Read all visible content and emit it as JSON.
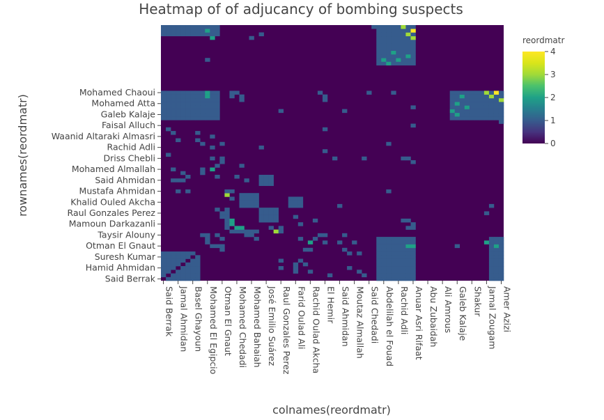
{
  "chart_data": {
    "type": "heatmap",
    "title": "Heatmap of of adjucancy of bombing suspects",
    "xlabel": "colnames(reordmatr)",
    "ylabel": "rownames(reordmatr)",
    "colorbar_title": "reordmatr",
    "n_nodes": 70,
    "zlim": [
      0,
      4
    ],
    "colorbar_ticks": [
      "0",
      "1",
      "2",
      "3",
      "4"
    ],
    "colorscale": "viridis",
    "x_tick_labels": [
      "Said Berrak",
      "Jamal Ahmidan",
      "Basel Ghayoun",
      "Mohamed El Egipcio",
      "Otman El Gnaut",
      "Mohamed Chedadi",
      "Mohamed Bahaiah",
      "José Emilio Suárez",
      "Raul Gonzales Perez",
      "Farid Oulad Ali",
      "Rachid Oulad Akcha",
      "El Hemir",
      "Said Ahmidan",
      "Moutaz Almallah",
      "Said Chedadi",
      "Abdelilah el Fouad",
      "Rachid Adli",
      "Anuar Asri Rifaat",
      "Abu Zubaidah",
      "Ali Amrous",
      "Galeb Kalaje",
      "Shakur",
      "Jamal Zougam",
      "Amer Azizi"
    ],
    "x_tick_index": [
      0,
      3,
      6,
      9,
      12,
      15,
      18,
      21,
      24,
      27,
      30,
      33,
      36,
      39,
      42,
      45,
      48,
      51,
      54,
      57,
      60,
      63,
      66,
      69
    ],
    "y_tick_labels": [
      "Said Berrak",
      "Hamid Ahmidan",
      "Suresh Kumar",
      "Otman El Gnaut",
      "Taysir Alouny",
      "Mamoun Darkazanli",
      "Raul Gonzales Perez",
      "Khalid Ouled Akcha",
      "Mustafa Ahmidan",
      "Said Ahmidan",
      "Mohamed Almallah",
      "Driss Chebli",
      "Rachid Adli",
      "Waanid Altaraki Almasri",
      "Faisal Alluch",
      "Galeb Kalaje",
      "Mohamed Atta",
      "Mohamed Chaoui"
    ],
    "y_tick_index": [
      0,
      3,
      6,
      9,
      12,
      15,
      18,
      21,
      24,
      27,
      30,
      33,
      36,
      39,
      42,
      45,
      48,
      51
    ],
    "blocks": [
      {
        "rows": [
          0,
          7
        ],
        "cols": [
          0,
          7
        ],
        "value": 1
      },
      {
        "rows": [
          13,
          15
        ],
        "cols": [
          13,
          15
        ],
        "value": 1
      },
      {
        "rows": [
          16,
          19
        ],
        "cols": [
          20,
          23
        ],
        "value": 1
      },
      {
        "rows": [
          20,
          22
        ],
        "cols": [
          26,
          28
        ],
        "value": 1
      },
      {
        "rows": [
          44,
          51
        ],
        "cols": [
          59,
          66
        ],
        "value": 1
      },
      {
        "rows": [
          44,
          51
        ],
        "cols": [
          66,
          69
        ],
        "value": 1
      },
      {
        "rows": [
          44,
          51
        ],
        "cols": [
          0,
          11
        ],
        "value": 1
      },
      {
        "rows": [
          0,
          11
        ],
        "cols": [
          67,
          69
        ],
        "value": 1
      }
    ],
    "cells": [
      {
        "r": 51,
        "c": 68,
        "v": 4
      },
      {
        "r": 50,
        "c": 67,
        "v": 3
      },
      {
        "r": 51,
        "c": 66,
        "v": 3
      },
      {
        "r": 49,
        "c": 69,
        "v": 3
      },
      {
        "r": 50,
        "c": 61,
        "v": 2
      },
      {
        "r": 48,
        "c": 60,
        "v": 2
      },
      {
        "r": 47,
        "c": 62,
        "v": 2
      },
      {
        "r": 46,
        "c": 59,
        "v": 2
      },
      {
        "r": 45,
        "c": 60,
        "v": 2
      },
      {
        "r": 51,
        "c": 9,
        "v": 2
      },
      {
        "r": 50,
        "c": 9,
        "v": 2
      },
      {
        "r": 14,
        "c": 15,
        "v": 2
      },
      {
        "r": 14,
        "c": 16,
        "v": 2
      },
      {
        "r": 10,
        "c": 30,
        "v": 2
      },
      {
        "r": 23,
        "c": 13,
        "v": 3
      },
      {
        "r": 10,
        "c": 66,
        "v": 2
      },
      {
        "r": 9,
        "c": 68,
        "v": 2
      },
      {
        "r": 51,
        "c": 14,
        "v": 1
      },
      {
        "r": 50,
        "c": 14,
        "v": 1
      },
      {
        "r": 51,
        "c": 15,
        "v": 1
      },
      {
        "r": 50,
        "c": 16,
        "v": 1
      },
      {
        "r": 49,
        "c": 16,
        "v": 1
      },
      {
        "r": 51,
        "c": 32,
        "v": 1
      },
      {
        "r": 50,
        "c": 33,
        "v": 1
      },
      {
        "r": 49,
        "c": 33,
        "v": 1
      },
      {
        "r": 51,
        "c": 42,
        "v": 1
      },
      {
        "r": 51,
        "c": 47,
        "v": 1
      },
      {
        "r": 46,
        "c": 37,
        "v": 1
      },
      {
        "r": 45,
        "c": 8,
        "v": 1
      },
      {
        "r": 45,
        "c": 9,
        "v": 1
      },
      {
        "r": 45,
        "c": 10,
        "v": 1
      },
      {
        "r": 46,
        "c": 0,
        "v": 1
      },
      {
        "r": 41,
        "c": 1,
        "v": 1
      },
      {
        "r": 40,
        "c": 2,
        "v": 1
      },
      {
        "r": 38,
        "c": 3,
        "v": 1
      },
      {
        "r": 36,
        "c": 20,
        "v": 1
      },
      {
        "r": 33,
        "c": 12,
        "v": 1
      },
      {
        "r": 32,
        "c": 12,
        "v": 1
      },
      {
        "r": 30,
        "c": 8,
        "v": 1
      },
      {
        "r": 29,
        "c": 8,
        "v": 1
      },
      {
        "r": 31,
        "c": 16,
        "v": 1
      },
      {
        "r": 27,
        "c": 2,
        "v": 1
      },
      {
        "r": 27,
        "c": 4,
        "v": 1
      },
      {
        "r": 28,
        "c": 15,
        "v": 1
      },
      {
        "r": 27,
        "c": 17,
        "v": 1
      },
      {
        "r": 27,
        "c": 27,
        "v": 1
      },
      {
        "r": 24,
        "c": 3,
        "v": 1
      },
      {
        "r": 24,
        "c": 5,
        "v": 1
      },
      {
        "r": 24,
        "c": 13,
        "v": 1
      },
      {
        "r": 24,
        "c": 14,
        "v": 1
      },
      {
        "r": 24,
        "c": 46,
        "v": 1
      },
      {
        "r": 22,
        "c": 14,
        "v": 1
      },
      {
        "r": 19,
        "c": 13,
        "v": 1
      },
      {
        "r": 18,
        "c": 13,
        "v": 1
      },
      {
        "r": 17,
        "c": 13,
        "v": 1
      },
      {
        "r": 16,
        "c": 13,
        "v": 1
      },
      {
        "r": 12,
        "c": 9,
        "v": 1
      },
      {
        "r": 12,
        "c": 11,
        "v": 1
      },
      {
        "r": 12,
        "c": 17,
        "v": 1
      },
      {
        "r": 12,
        "c": 18,
        "v": 1
      },
      {
        "r": 11,
        "c": 19,
        "v": 1
      },
      {
        "r": 11,
        "c": 28,
        "v": 1
      },
      {
        "r": 11,
        "c": 31,
        "v": 1
      },
      {
        "r": 10,
        "c": 33,
        "v": 1
      },
      {
        "r": 10,
        "c": 36,
        "v": 1
      },
      {
        "r": 10,
        "c": 39,
        "v": 1
      },
      {
        "r": 9,
        "c": 10,
        "v": 1
      },
      {
        "r": 9,
        "c": 11,
        "v": 1
      },
      {
        "r": 8,
        "c": 12,
        "v": 1
      },
      {
        "r": 8,
        "c": 37,
        "v": 1
      },
      {
        "r": 7,
        "c": 38,
        "v": 1
      },
      {
        "r": 7,
        "c": 40,
        "v": 1
      },
      {
        "r": 5,
        "c": 28,
        "v": 1
      },
      {
        "r": 4,
        "c": 29,
        "v": 1
      },
      {
        "r": 3,
        "c": 27,
        "v": 1
      },
      {
        "r": 2,
        "c": 30,
        "v": 1
      },
      {
        "r": 1,
        "c": 34,
        "v": 1
      },
      {
        "r": 1,
        "c": 49,
        "v": 1
      },
      {
        "r": 2,
        "c": 50,
        "v": 1
      },
      {
        "r": 9,
        "c": 60,
        "v": 1
      },
      {
        "r": 20,
        "c": 67,
        "v": 1
      },
      {
        "r": 18,
        "c": 66,
        "v": 1
      },
      {
        "r": 33,
        "c": 41,
        "v": 1
      },
      {
        "r": 35,
        "c": 33,
        "v": 1
      },
      {
        "r": 43,
        "c": 69,
        "v": 1
      },
      {
        "r": 37,
        "c": 12,
        "v": 1
      }
    ]
  }
}
